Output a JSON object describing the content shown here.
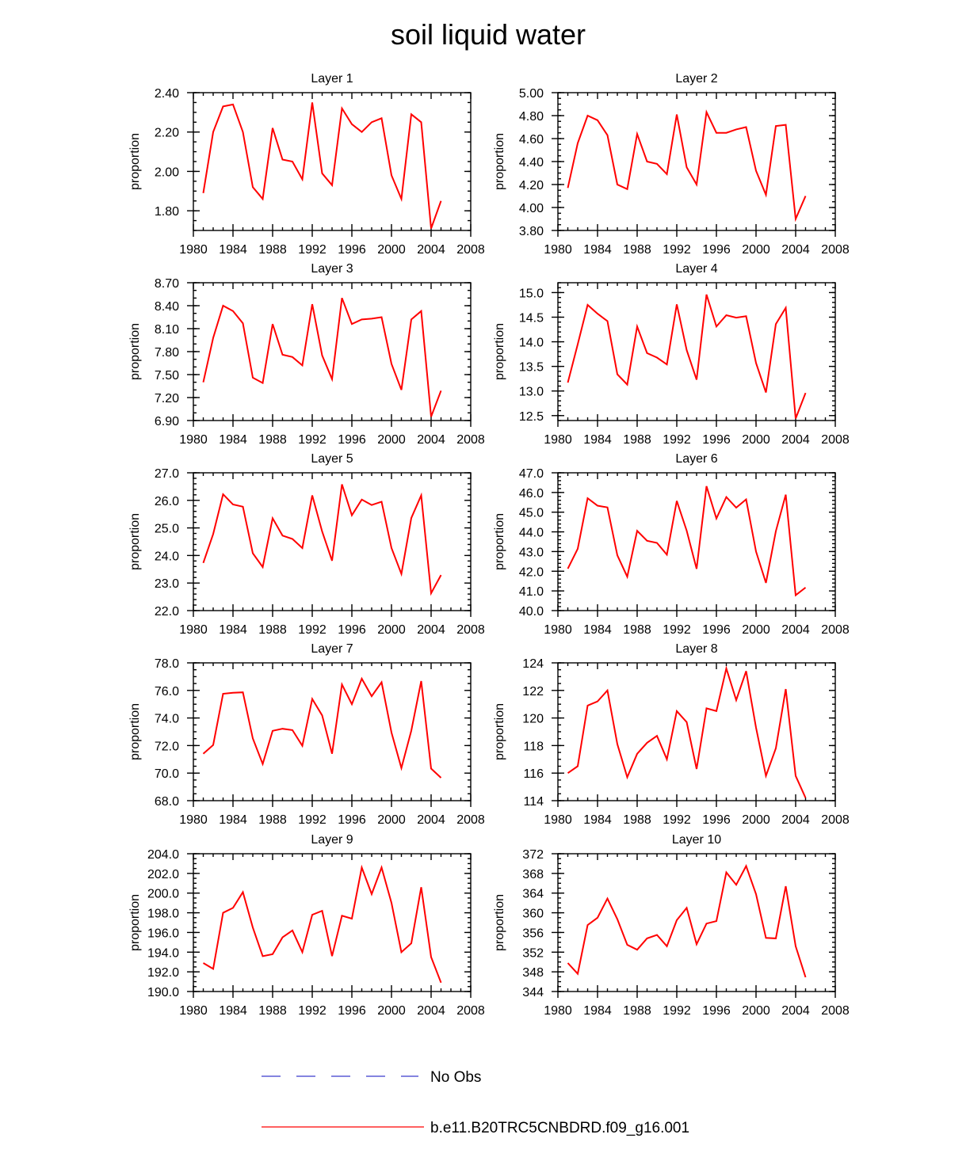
{
  "title": "soil liquid water",
  "colors": {
    "model": "#ff0000",
    "obs": "#3a3acd",
    "axis": "#000000"
  },
  "legend": {
    "items": [
      {
        "label": "No Obs",
        "style": "dashed",
        "color": "#3a3acd"
      },
      {
        "label": "b.e11.B20TRC5CNBDRD.f09_g16.001",
        "style": "solid",
        "color": "#ff0000"
      }
    ]
  },
  "chart_data": [
    {
      "type": "line",
      "title": "Layer 1",
      "ylabel": "proportion",
      "xlabel": "",
      "xlim": [
        1980,
        2008
      ],
      "x_ticks": [
        "1980",
        "1984",
        "1988",
        "1992",
        "1996",
        "2000",
        "2004",
        "2008"
      ],
      "ylim": [
        1.7,
        2.4
      ],
      "y_ticks": [
        "1.80",
        "2.00",
        "2.20",
        "2.40"
      ],
      "y_tick_values": [
        1.8,
        2.0,
        2.2,
        2.4
      ],
      "y_minor": 0.05,
      "series": [
        {
          "name": "b.e11.B20TRC5CNBDRD.f09_g16.001",
          "x": [
            1981,
            1982,
            1983,
            1984,
            1985,
            1986,
            1987,
            1988,
            1989,
            1990,
            1991,
            1992,
            1993,
            1994,
            1995,
            1996,
            1997,
            1998,
            1999,
            2000,
            2001,
            2002,
            2003,
            2004,
            2005
          ],
          "values": [
            1.89,
            2.2,
            2.33,
            2.34,
            2.2,
            1.92,
            1.86,
            2.22,
            2.06,
            2.05,
            1.96,
            2.35,
            1.99,
            1.93,
            2.32,
            2.24,
            2.2,
            2.25,
            2.27,
            1.98,
            1.86,
            2.29,
            2.25,
            1.71,
            1.85
          ]
        }
      ]
    },
    {
      "type": "line",
      "title": "Layer 2",
      "ylabel": "proportion",
      "xlabel": "",
      "xlim": [
        1980,
        2008
      ],
      "x_ticks": [
        "1980",
        "1984",
        "1988",
        "1992",
        "1996",
        "2000",
        "2004",
        "2008"
      ],
      "ylim": [
        3.8,
        5.0
      ],
      "y_ticks": [
        "3.80",
        "4.00",
        "4.20",
        "4.40",
        "4.60",
        "4.80",
        "5.00"
      ],
      "y_tick_values": [
        3.8,
        4.0,
        4.2,
        4.4,
        4.6,
        4.8,
        5.0
      ],
      "y_minor": 0.05,
      "series": [
        {
          "name": "b.e11.B20TRC5CNBDRD.f09_g16.001",
          "x": [
            1981,
            1982,
            1983,
            1984,
            1985,
            1986,
            1987,
            1988,
            1989,
            1990,
            1991,
            1992,
            1993,
            1994,
            1995,
            1996,
            1997,
            1998,
            1999,
            2000,
            2001,
            2002,
            2003,
            2004,
            2005
          ],
          "values": [
            4.17,
            4.56,
            4.8,
            4.76,
            4.63,
            4.2,
            4.16,
            4.64,
            4.4,
            4.38,
            4.29,
            4.81,
            4.35,
            4.2,
            4.83,
            4.65,
            4.65,
            4.68,
            4.7,
            4.32,
            4.11,
            4.71,
            4.72,
            3.9,
            4.1
          ]
        }
      ]
    },
    {
      "type": "line",
      "title": "Layer 3",
      "ylabel": "proportion",
      "xlabel": "",
      "xlim": [
        1980,
        2008
      ],
      "x_ticks": [
        "1980",
        "1984",
        "1988",
        "1992",
        "1996",
        "2000",
        "2004",
        "2008"
      ],
      "ylim": [
        6.9,
        8.7
      ],
      "y_ticks": [
        "6.90",
        "7.20",
        "7.50",
        "7.80",
        "8.10",
        "8.40",
        "8.70"
      ],
      "y_tick_values": [
        6.9,
        7.2,
        7.5,
        7.8,
        8.1,
        8.4,
        8.7
      ],
      "y_minor": 0.1,
      "series": [
        {
          "name": "b.e11.B20TRC5CNBDRD.f09_g16.001",
          "x": [
            1981,
            1982,
            1983,
            1984,
            1985,
            1986,
            1987,
            1988,
            1989,
            1990,
            1991,
            1992,
            1993,
            1994,
            1995,
            1996,
            1997,
            1998,
            1999,
            2000,
            2001,
            2002,
            2003,
            2004,
            2005
          ],
          "values": [
            7.4,
            7.98,
            8.4,
            8.33,
            8.17,
            7.46,
            7.39,
            8.16,
            7.76,
            7.73,
            7.62,
            8.42,
            7.75,
            7.44,
            8.5,
            8.16,
            8.22,
            8.23,
            8.25,
            7.64,
            7.3,
            8.22,
            8.33,
            6.95,
            7.29
          ]
        }
      ]
    },
    {
      "type": "line",
      "title": "Layer 4",
      "ylabel": "proportion",
      "xlabel": "",
      "xlim": [
        1980,
        2008
      ],
      "x_ticks": [
        "1980",
        "1984",
        "1988",
        "1992",
        "1996",
        "2000",
        "2004",
        "2008"
      ],
      "ylim": [
        12.4,
        15.2
      ],
      "y_ticks": [
        "12.5",
        "13.0",
        "13.5",
        "14.0",
        "14.5",
        "15.0"
      ],
      "y_tick_values": [
        12.5,
        13.0,
        13.5,
        14.0,
        14.5,
        15.0
      ],
      "y_minor": 0.1,
      "series": [
        {
          "name": "b.e11.B20TRC5CNBDRD.f09_g16.001",
          "x": [
            1981,
            1982,
            1983,
            1984,
            1985,
            1986,
            1987,
            1988,
            1989,
            1990,
            1991,
            1992,
            1993,
            1994,
            1995,
            1996,
            1997,
            1998,
            1999,
            2000,
            2001,
            2002,
            2003,
            2004,
            2005
          ],
          "values": [
            13.17,
            13.95,
            14.75,
            14.57,
            14.42,
            13.34,
            13.13,
            14.31,
            13.77,
            13.68,
            13.54,
            14.76,
            13.83,
            13.23,
            14.96,
            14.31,
            14.54,
            14.49,
            14.52,
            13.57,
            12.97,
            14.36,
            14.69,
            12.44,
            12.96
          ]
        }
      ]
    },
    {
      "type": "line",
      "title": "Layer 5",
      "ylabel": "proportion",
      "xlabel": "",
      "xlim": [
        1980,
        2008
      ],
      "x_ticks": [
        "1980",
        "1984",
        "1988",
        "1992",
        "1996",
        "2000",
        "2004",
        "2008"
      ],
      "ylim": [
        22.0,
        27.0
      ],
      "y_ticks": [
        "22.0",
        "23.0",
        "24.0",
        "25.0",
        "26.0",
        "27.0"
      ],
      "y_tick_values": [
        22,
        23,
        24,
        25,
        26,
        27
      ],
      "y_minor": 0.2,
      "series": [
        {
          "name": "b.e11.B20TRC5CNBDRD.f09_g16.001",
          "x": [
            1981,
            1982,
            1983,
            1984,
            1985,
            1986,
            1987,
            1988,
            1989,
            1990,
            1991,
            1992,
            1993,
            1994,
            1995,
            1996,
            1997,
            1998,
            1999,
            2000,
            2001,
            2002,
            2003,
            2004,
            2005
          ],
          "values": [
            23.73,
            24.78,
            26.22,
            25.85,
            25.77,
            24.08,
            23.58,
            25.35,
            24.72,
            24.6,
            24.27,
            26.18,
            24.87,
            23.81,
            26.58,
            25.46,
            26.03,
            25.83,
            25.95,
            24.27,
            23.33,
            25.36,
            26.18,
            22.63,
            23.29
          ]
        }
      ]
    },
    {
      "type": "line",
      "title": "Layer 6",
      "ylabel": "proportion",
      "xlabel": "",
      "xlim": [
        1980,
        2008
      ],
      "x_ticks": [
        "1980",
        "1984",
        "1988",
        "1992",
        "1996",
        "2000",
        "2004",
        "2008"
      ],
      "ylim": [
        40.0,
        47.0
      ],
      "y_ticks": [
        "40.0",
        "41.0",
        "42.0",
        "43.0",
        "44.0",
        "45.0",
        "46.0",
        "47.0"
      ],
      "y_tick_values": [
        40,
        41,
        42,
        43,
        44,
        45,
        46,
        47
      ],
      "y_minor": 0.2,
      "series": [
        {
          "name": "b.e11.B20TRC5CNBDRD.f09_g16.001",
          "x": [
            1981,
            1982,
            1983,
            1984,
            1985,
            1986,
            1987,
            1988,
            1989,
            1990,
            1991,
            1992,
            1993,
            1994,
            1995,
            1996,
            1997,
            1998,
            1999,
            2000,
            2001,
            2002,
            2003,
            2004,
            2005
          ],
          "values": [
            42.13,
            43.14,
            45.71,
            45.33,
            45.24,
            42.81,
            41.72,
            44.05,
            43.55,
            43.44,
            42.84,
            45.57,
            44.06,
            42.12,
            46.32,
            44.68,
            45.77,
            45.23,
            45.65,
            43.0,
            41.41,
            44.03,
            45.89,
            40.78,
            41.17
          ]
        }
      ]
    },
    {
      "type": "line",
      "title": "Layer 7",
      "ylabel": "proportion",
      "xlabel": "",
      "xlim": [
        1980,
        2008
      ],
      "x_ticks": [
        "1980",
        "1984",
        "1988",
        "1992",
        "1996",
        "2000",
        "2004",
        "2008"
      ],
      "ylim": [
        68.0,
        78.0
      ],
      "y_ticks": [
        "68.0",
        "70.0",
        "72.0",
        "74.0",
        "76.0",
        "78.0"
      ],
      "y_tick_values": [
        68,
        70,
        72,
        74,
        76,
        78
      ],
      "y_minor": 0.5,
      "series": [
        {
          "name": "b.e11.B20TRC5CNBDRD.f09_g16.001",
          "x": [
            1981,
            1982,
            1983,
            1984,
            1985,
            1986,
            1987,
            1988,
            1989,
            1990,
            1991,
            1992,
            1993,
            1994,
            1995,
            1996,
            1997,
            1998,
            1999,
            2000,
            2001,
            2002,
            2003,
            2004,
            2005
          ],
          "values": [
            71.4,
            72.04,
            75.76,
            75.83,
            75.86,
            72.52,
            70.66,
            73.07,
            73.22,
            73.12,
            71.98,
            75.38,
            74.19,
            71.41,
            76.43,
            75.0,
            76.85,
            75.58,
            76.59,
            72.94,
            70.37,
            73.08,
            76.68,
            70.33,
            69.66
          ]
        }
      ]
    },
    {
      "type": "line",
      "title": "Layer 8",
      "ylabel": "proportion",
      "xlabel": "",
      "xlim": [
        1980,
        2008
      ],
      "x_ticks": [
        "1980",
        "1984",
        "1988",
        "1992",
        "1996",
        "2000",
        "2004",
        "2008"
      ],
      "ylim": [
        114,
        124
      ],
      "y_ticks": [
        "114",
        "116",
        "118",
        "120",
        "122",
        "124"
      ],
      "y_tick_values": [
        114,
        116,
        118,
        120,
        122,
        124
      ],
      "y_minor": 0.5,
      "series": [
        {
          "name": "b.e11.B20TRC5CNBDRD.f09_g16.001",
          "x": [
            1981,
            1982,
            1983,
            1984,
            1985,
            1986,
            1987,
            1988,
            1989,
            1990,
            1991,
            1992,
            1993,
            1994,
            1995,
            1996,
            1997,
            1998,
            1999,
            2000,
            2001,
            2002,
            2003,
            2004,
            2005
          ],
          "values": [
            116.0,
            116.5,
            120.9,
            121.2,
            122.0,
            118.1,
            115.7,
            117.4,
            118.2,
            118.7,
            117.0,
            120.5,
            119.7,
            116.3,
            120.7,
            120.5,
            123.6,
            121.3,
            123.4,
            119.3,
            115.8,
            117.8,
            122.1,
            115.8,
            114.2
          ]
        }
      ]
    },
    {
      "type": "line",
      "title": "Layer 9",
      "ylabel": "proportion",
      "xlabel": "",
      "xlim": [
        1980,
        2008
      ],
      "x_ticks": [
        "1980",
        "1984",
        "1988",
        "1992",
        "1996",
        "2000",
        "2004",
        "2008"
      ],
      "ylim": [
        190.0,
        204.0
      ],
      "y_ticks": [
        "190.0",
        "192.0",
        "194.0",
        "196.0",
        "198.0",
        "200.0",
        "202.0",
        "204.0"
      ],
      "y_tick_values": [
        190,
        192,
        194,
        196,
        198,
        200,
        202,
        204
      ],
      "y_minor": 0.5,
      "series": [
        {
          "name": "b.e11.B20TRC5CNBDRD.f09_g16.001",
          "x": [
            1981,
            1982,
            1983,
            1984,
            1985,
            1986,
            1987,
            1988,
            1989,
            1990,
            1991,
            1992,
            1993,
            1994,
            1995,
            1996,
            1997,
            1998,
            1999,
            2000,
            2001,
            2002,
            2003,
            2004,
            2005
          ],
          "values": [
            192.9,
            192.3,
            198.0,
            198.5,
            200.1,
            196.5,
            193.6,
            193.8,
            195.5,
            196.2,
            194.0,
            197.8,
            198.2,
            193.6,
            197.7,
            197.4,
            202.6,
            199.9,
            202.6,
            199.0,
            194.0,
            194.9,
            200.6,
            193.5,
            190.9
          ]
        }
      ]
    },
    {
      "type": "line",
      "title": "Layer 10",
      "ylabel": "proportion",
      "xlabel": "",
      "xlim": [
        1980,
        2008
      ],
      "x_ticks": [
        "1980",
        "1984",
        "1988",
        "1992",
        "1996",
        "2000",
        "2004",
        "2008"
      ],
      "ylim": [
        344,
        372
      ],
      "y_ticks": [
        "344",
        "348",
        "352",
        "356",
        "360",
        "364",
        "368",
        "372"
      ],
      "y_tick_values": [
        344,
        348,
        352,
        356,
        360,
        364,
        368,
        372
      ],
      "y_minor": 1,
      "series": [
        {
          "name": "b.e11.B20TRC5CNBDRD.f09_g16.001",
          "x": [
            1981,
            1982,
            1983,
            1984,
            1985,
            1986,
            1987,
            1988,
            1989,
            1990,
            1991,
            1992,
            1993,
            1994,
            1995,
            1996,
            1997,
            1998,
            1999,
            2000,
            2001,
            2002,
            2003,
            2004,
            2005
          ],
          "values": [
            349.8,
            347.6,
            357.5,
            359.0,
            362.9,
            358.7,
            353.5,
            352.5,
            354.8,
            355.5,
            353.2,
            358.5,
            361.0,
            353.6,
            357.8,
            358.3,
            368.2,
            365.7,
            369.5,
            363.8,
            354.9,
            354.8,
            365.4,
            353.2,
            346.9
          ]
        }
      ]
    }
  ]
}
